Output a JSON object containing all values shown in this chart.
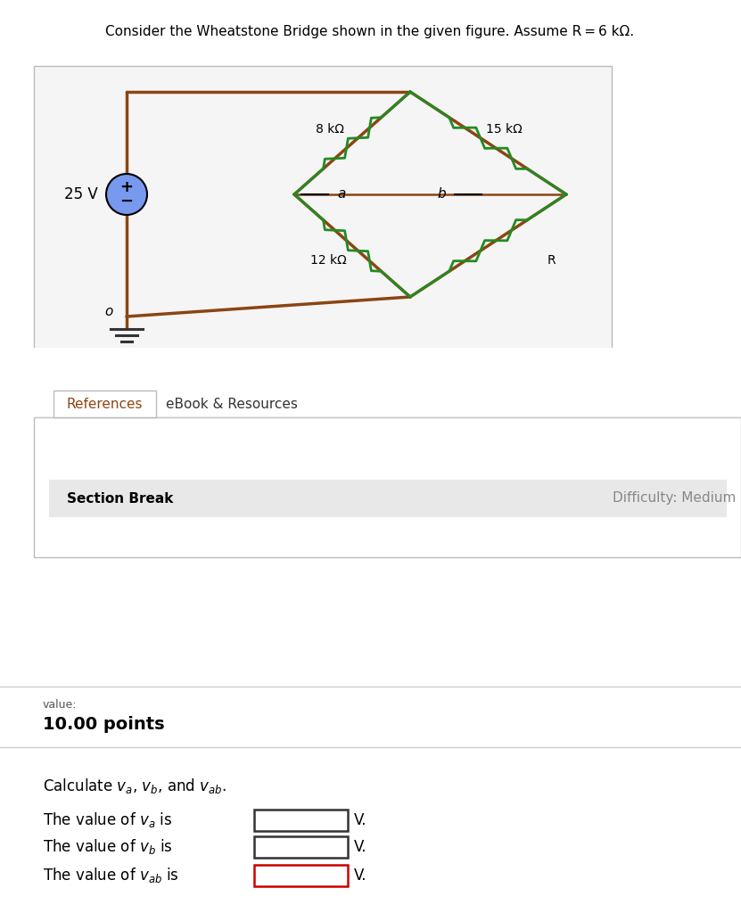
{
  "title": "Consider the Wheatstone Bridge shown in the given figure. Assume R = 6 kΩ.",
  "bg_color": "#ffffff",
  "wire_color": "#8B4513",
  "resistor_color": "#228B22",
  "voltage_label": "25 V",
  "ground_label": "o",
  "resistors": [
    "8 kΩ",
    "15 kΩ",
    "12 kΩ",
    "R"
  ],
  "nodes": [
    "a",
    "b"
  ],
  "tab1_label": "References",
  "tab2_label": "eBook & Resources",
  "section_label": "Section Break",
  "difficulty_label": "Difficulty: Medium",
  "value_label": "value:",
  "points_label": "10.00 points",
  "box_border_colors": [
    "#333333",
    "#333333",
    "#cc0000"
  ],
  "unit": "V."
}
